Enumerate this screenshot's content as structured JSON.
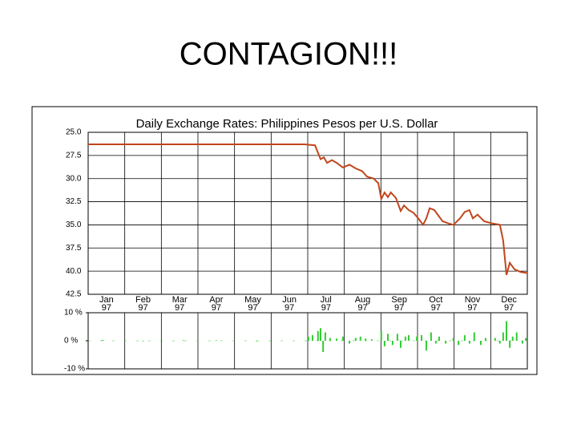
{
  "title": "CONTAGION!!!",
  "chart_data": [
    {
      "type": "line",
      "title": "Daily Exchange Rates: Philippines Pesos per U.S. Dollar",
      "x": [
        0,
        5.91,
        6.2,
        6.29,
        6.35,
        6.44,
        6.53,
        6.66,
        6.79,
        6.96,
        7.14,
        7.31,
        7.49,
        7.62,
        7.8,
        7.93,
        8.01,
        8.1,
        8.19,
        8.27,
        8.41,
        8.54,
        8.63,
        8.76,
        8.89,
        9.02,
        9.15,
        9.24,
        9.33,
        9.46,
        9.59,
        9.68,
        9.81,
        9.98,
        10.16,
        10.29,
        10.42,
        10.51,
        10.64,
        10.82,
        10.99,
        11.25,
        11.34,
        11.43,
        11.52,
        11.65,
        11.82,
        12
      ],
      "values": [
        26.3,
        26.3,
        26.4,
        27.3,
        27.9,
        27.7,
        28.3,
        28.0,
        28.3,
        28.8,
        28.5,
        28.9,
        29.2,
        29.8,
        30.0,
        30.5,
        32.2,
        31.5,
        32.0,
        31.5,
        32.1,
        33.5,
        32.9,
        33.4,
        33.7,
        34.3,
        35.0,
        34.3,
        33.2,
        33.4,
        34.1,
        34.6,
        34.8,
        35.0,
        34.3,
        33.6,
        33.4,
        34.3,
        33.9,
        34.6,
        34.8,
        35.0,
        36.7,
        40.4,
        39.1,
        39.8,
        40.1,
        40.2
      ],
      "color": "#c0461c",
      "xlim": [
        0,
        12
      ],
      "xticks": [
        {
          "value": 0,
          "label": "Jan"
        },
        {
          "value": 1,
          "label": "Feb"
        },
        {
          "value": 2,
          "label": "Mar"
        },
        {
          "value": 3,
          "label": "Apr"
        },
        {
          "value": 4,
          "label": "May"
        },
        {
          "value": 5,
          "label": "Jun"
        },
        {
          "value": 6,
          "label": "Jul"
        },
        {
          "value": 7,
          "label": "Aug"
        },
        {
          "value": 8,
          "label": "Sep"
        },
        {
          "value": 9,
          "label": "Oct"
        },
        {
          "value": 10,
          "label": "Nov"
        },
        {
          "value": 11,
          "label": "Dec"
        }
      ],
      "xtick_years": [
        "97",
        "97",
        "97",
        "97",
        "97",
        "97",
        "97",
        "97",
        "97",
        "97",
        "97",
        "97"
      ],
      "ylim": [
        42.5,
        25
      ],
      "yticks": [
        {
          "value": 25,
          "label": "25.0"
        },
        {
          "value": 27.5,
          "label": "27.5"
        },
        {
          "value": 30,
          "label": "30.0"
        },
        {
          "value": 32.5,
          "label": "32.5"
        },
        {
          "value": 35,
          "label": "35.0"
        },
        {
          "value": 37.5,
          "label": "37.5"
        },
        {
          "value": 40,
          "label": "40.0"
        },
        {
          "value": 42.5,
          "label": "42.5"
        }
      ],
      "grid": true
    },
    {
      "type": "bar",
      "x": [
        0.4,
        1.5,
        2.6,
        3.5,
        4.6,
        6.02,
        6.13,
        6.28,
        6.35,
        6.42,
        6.48,
        6.61,
        6.79,
        6.96,
        7.14,
        7.31,
        7.44,
        7.58,
        7.75,
        8.01,
        8.1,
        8.19,
        8.32,
        8.45,
        8.54,
        8.67,
        8.76,
        8.98,
        9.11,
        9.24,
        9.37,
        9.5,
        9.59,
        9.77,
        9.98,
        10.12,
        10.29,
        10.42,
        10.55,
        10.73,
        10.86,
        11.12,
        11.25,
        11.34,
        11.43,
        11.52,
        11.6,
        11.71,
        11.87,
        11.96
      ],
      "values": [
        0.3,
        -0.2,
        0.2,
        0.2,
        -0.2,
        1.5,
        2.0,
        3.5,
        4.5,
        -4,
        3,
        1,
        0.8,
        1.5,
        -1,
        1,
        1.5,
        0.8,
        0.5,
        3.5,
        -2,
        2.5,
        -1.5,
        2.5,
        -2.5,
        1.5,
        2,
        1.5,
        2,
        -3.5,
        3,
        -1,
        1.5,
        -1,
        1,
        -1.5,
        2,
        -1,
        3,
        -1.5,
        1,
        1,
        -1,
        3,
        7,
        -2.5,
        1.5,
        3,
        -1,
        1
      ],
      "color": "#33cc33",
      "xlim": [
        0,
        12
      ],
      "ylim": [
        -10,
        10
      ],
      "yticks": [
        {
          "value": 10,
          "label": "10 %"
        },
        {
          "value": 0,
          "label": "0 %"
        },
        {
          "value": -10,
          "label": "-10 %"
        }
      ]
    }
  ]
}
